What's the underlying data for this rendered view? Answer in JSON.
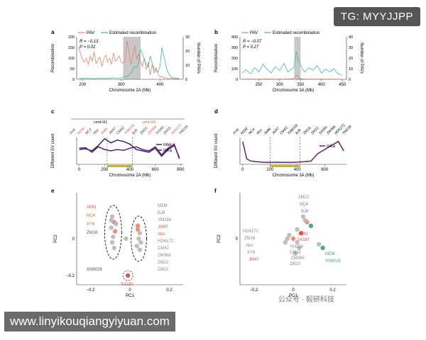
{
  "watermark_tg": "TG: MYYJJPP",
  "watermark_url": "www.linyikouqiangyiyuan.com",
  "watermark_wechat": "公众号 · 毅研科技",
  "chart_data": [
    {
      "panel": "a",
      "type": "line",
      "legend": [
        "PAV",
        "Estimated recombination"
      ],
      "stats": [
        "R = −0.13",
        "P = 0.02"
      ],
      "xlabel": "Chromosome 2A (Mb)",
      "ylabel": "Recombination",
      "y2label": "Number of PAVs",
      "xticks": [
        "200",
        "300",
        "400"
      ],
      "yticks": [
        "0",
        "50",
        "100",
        "150",
        "200"
      ],
      "y2ticks": [
        "0",
        "10",
        "20",
        "30"
      ],
      "xlim": [
        185,
        460
      ],
      "ylim": [
        0,
        200
      ],
      "y2lim": [
        0,
        30
      ],
      "highlight": [
        305,
        350
      ],
      "series": [
        {
          "name": "PAV",
          "color": "#e8826d",
          "x": [
            190,
            195,
            200,
            205,
            210,
            215,
            220,
            225,
            230,
            235,
            240,
            245,
            250,
            255,
            260,
            265,
            270,
            275,
            280,
            285,
            290,
            295,
            300,
            305,
            310,
            315,
            320,
            325,
            330,
            335,
            340,
            345,
            350,
            355,
            360,
            365,
            370,
            375,
            380,
            385,
            390,
            395,
            400,
            405,
            410,
            415,
            420,
            425,
            430,
            435,
            440,
            445,
            450
          ],
          "values": [
            150,
            120,
            95,
            80,
            100,
            70,
            110,
            85,
            130,
            75,
            90,
            105,
            60,
            95,
            115,
            80,
            100,
            70,
            125,
            85,
            95,
            110,
            80,
            75,
            90,
            180,
            130,
            70,
            110,
            160,
            95,
            120,
            85,
            60,
            100,
            45,
            80,
            20,
            70,
            30,
            55,
            25,
            10,
            15,
            5,
            8,
            4,
            3,
            5,
            2,
            4,
            3,
            2
          ]
        },
        {
          "name": "Estimated recombination",
          "color": "#3fb8aa",
          "x": [
            190,
            200,
            210,
            220,
            230,
            240,
            250,
            260,
            270,
            280,
            290,
            300,
            305,
            310,
            315,
            320,
            325,
            330,
            335,
            340,
            345,
            350,
            355,
            360,
            365,
            370,
            375,
            380,
            385,
            390,
            395,
            400,
            405,
            410,
            415,
            420,
            425,
            430,
            440,
            450
          ],
          "values": [
            5,
            4,
            6,
            5,
            3,
            6,
            5,
            4,
            6,
            7,
            5,
            8,
            10,
            14,
            12,
            20,
            30,
            45,
            60,
            55,
            80,
            140,
            120,
            90,
            70,
            60,
            110,
            75,
            50,
            40,
            35,
            60,
            150,
            110,
            70,
            35,
            20,
            10,
            6,
            5
          ]
        }
      ]
    },
    {
      "panel": "b",
      "type": "line",
      "legend": [
        "PAV",
        "Estimated recombination"
      ],
      "stats": [
        "R = −0.07",
        "P = 0.27"
      ],
      "xlabel": "Chromosome 3A (Mb)",
      "ylabel": "Recombination",
      "y2label": "Number of PAVs",
      "xticks": [
        "250",
        "300",
        "350",
        "400",
        "450"
      ],
      "yticks": [
        "0",
        "100",
        "200",
        "300",
        "400"
      ],
      "y2ticks": [
        "0",
        "10",
        "20",
        "30",
        "40"
      ],
      "xlim": [
        205,
        460
      ],
      "ylim": [
        0,
        400
      ],
      "y2lim": [
        0,
        45
      ],
      "highlight": [
        335,
        350
      ],
      "series": [
        {
          "name": "Estimated recombination",
          "color": "#3fb8aa",
          "x": [
            210,
            220,
            230,
            240,
            250,
            260,
            270,
            280,
            290,
            300,
            310,
            320,
            330,
            335,
            340,
            345,
            350,
            355,
            360,
            370,
            380,
            390,
            400,
            410,
            420,
            430,
            440,
            450
          ],
          "values": [
            60,
            90,
            50,
            110,
            70,
            140,
            95,
            60,
            120,
            80,
            150,
            70,
            100,
            120,
            260,
            180,
            140,
            90,
            70,
            110,
            85,
            130,
            60,
            95,
            70,
            100,
            50,
            40
          ]
        },
        {
          "name": "PAV",
          "color": "#e8826d",
          "x": [
            210,
            230,
            250,
            270,
            290,
            310,
            330,
            335,
            340,
            345,
            350,
            360,
            380,
            400,
            420,
            440,
            450
          ],
          "values": [
            2,
            3,
            2,
            4,
            2,
            3,
            5,
            15,
            40,
            20,
            6,
            3,
            2,
            3,
            2,
            2,
            1
          ]
        }
      ]
    },
    {
      "panel": "c",
      "type": "line",
      "labels": [
        "cent-H1",
        "cent-H2"
      ],
      "accessions": [
        "XY6",
        "MZM",
        "NC4",
        "Abo",
        "AMN",
        "JM47",
        "CM42",
        "XN6028",
        "BJ8",
        "ZM22",
        "ZM366",
        "S4180",
        "ZM16",
        "HD6172",
        "YM158"
      ],
      "legend": [
        "Inter",
        "Intra"
      ],
      "xlabel": "Chromosome 2A (Mb)",
      "ylabel": "Different SV count",
      "xticks": [
        "0",
        "200",
        "400",
        "600",
        "800"
      ],
      "xlim": [
        -20,
        820
      ],
      "series": [
        {
          "name": "Inter",
          "color": "#2a2a7a",
          "x": [
            0,
            50,
            100,
            150,
            200,
            250,
            300,
            350,
            400,
            450,
            500,
            550,
            600,
            650,
            700,
            750,
            790
          ],
          "values": [
            0.55,
            0.58,
            0.5,
            0.7,
            0.95,
            0.8,
            0.9,
            0.85,
            0.75,
            0.55,
            0.5,
            0.45,
            0.6,
            0.3,
            0.55,
            0.7,
            0.25
          ]
        },
        {
          "name": "Intra",
          "color": "#6a1e6e",
          "x": [
            0,
            50,
            100,
            150,
            200,
            250,
            300,
            350,
            400,
            450,
            500,
            550,
            600,
            650,
            700,
            750,
            790
          ],
          "values": [
            0.6,
            0.62,
            0.45,
            0.65,
            0.55,
            0.5,
            0.55,
            0.52,
            0.6,
            0.65,
            0.55,
            0.5,
            0.65,
            0.35,
            0.6,
            0.75,
            0.2
          ]
        }
      ]
    },
    {
      "panel": "d",
      "type": "line",
      "accessions": [
        "XY6",
        "MZM",
        "NC4",
        "Abo",
        "AMN",
        "JM47",
        "CM42",
        "XN6028",
        "BJ8",
        "ZM16",
        "ZM22",
        "S4180",
        "ZM366",
        "HD6172",
        "YM158"
      ],
      "legend": [
        "Intra"
      ],
      "xlabel": "Chromosome 3A (Mb)",
      "ylabel": "Different SV count",
      "xticks": [
        "0",
        "200",
        "400",
        "600"
      ],
      "xlim": [
        -20,
        760
      ],
      "series": [
        {
          "name": "Intra",
          "color": "#6a1e6e",
          "x": [
            0,
            30,
            60,
            100,
            150,
            200,
            250,
            300,
            350,
            400,
            450,
            500,
            550,
            600,
            650,
            700,
            740
          ],
          "values": [
            0.85,
            0.2,
            0.12,
            0.1,
            0.08,
            0.07,
            0.08,
            0.07,
            0.07,
            0.08,
            0.1,
            0.12,
            0.4,
            0.55,
            0.7,
            0.85,
            0.5
          ]
        }
      ]
    },
    {
      "panel": "e",
      "type": "scatter",
      "xlabel": "PC1",
      "ylabel": "PC2",
      "xticks": [
        "−0.2",
        "0",
        "0.2"
      ],
      "yticks": [
        "−0.2",
        "0"
      ],
      "xlim": [
        -0.27,
        0.27
      ],
      "ylim": [
        -0.25,
        0.25
      ],
      "labels_left": [
        "AMN",
        "NC4",
        "XY6",
        "ZM16",
        "XN6028"
      ],
      "labels_right": [
        "MZM",
        "BJ8",
        "YM158",
        "JM47",
        "Abo",
        "HD6172",
        "CM42",
        "ZM366",
        "ZM22",
        "ZM22"
      ],
      "outlier_label": "S4180",
      "points": [
        {
          "x": -0.09,
          "y": 0.12,
          "c": "gray"
        },
        {
          "x": -0.08,
          "y": 0.09,
          "c": "orange"
        },
        {
          "x": -0.095,
          "y": 0.06,
          "c": "gray"
        },
        {
          "x": -0.075,
          "y": 0.04,
          "c": "orange"
        },
        {
          "x": -0.085,
          "y": 0.01,
          "c": "gray"
        },
        {
          "x": -0.09,
          "y": -0.02,
          "c": "gray"
        },
        {
          "x": -0.08,
          "y": -0.05,
          "c": "gray"
        },
        {
          "x": -0.095,
          "y": 0.1,
          "c": "gray"
        },
        {
          "x": -0.07,
          "y": 0.08,
          "c": "gray"
        },
        {
          "x": 0.04,
          "y": 0.05,
          "c": "orange"
        },
        {
          "x": 0.05,
          "y": 0.03,
          "c": "gray"
        },
        {
          "x": 0.045,
          "y": 0.0,
          "c": "gray"
        },
        {
          "x": 0.055,
          "y": -0.02,
          "c": "gray"
        },
        {
          "x": 0.035,
          "y": -0.04,
          "c": "gray"
        },
        {
          "x": 0.05,
          "y": -0.06,
          "c": "gray"
        },
        {
          "x": 0.04,
          "y": 0.07,
          "c": "orange"
        },
        {
          "x": -0.01,
          "y": -0.2,
          "c": "red"
        },
        {
          "x": -0.02,
          "y": 0.0,
          "c": "gray"
        }
      ]
    },
    {
      "panel": "f",
      "type": "scatter",
      "xlabel": "PC1",
      "ylabel": "PC2",
      "xticks": [
        "−0.2",
        "0",
        "0.2"
      ],
      "yticks": [
        "0"
      ],
      "xlim": [
        -0.27,
        0.27
      ],
      "ylim": [
        -0.25,
        0.25
      ],
      "labels": [
        "ZM22",
        "NC4",
        "BJ8",
        "HD6172",
        "ZM16",
        "Abo",
        "XY6",
        "JM47",
        "AMN",
        "S4180",
        "YM158",
        "CM42",
        "ZM366",
        "ZM22",
        "MZM",
        "XN6028"
      ],
      "points": [
        {
          "x": 0.05,
          "y": 0.12,
          "c": "gray"
        },
        {
          "x": 0.07,
          "y": 0.09,
          "c": "orange"
        },
        {
          "x": 0.09,
          "y": 0.07,
          "c": "green"
        },
        {
          "x": -0.02,
          "y": 0.02,
          "c": "gray"
        },
        {
          "x": 0.0,
          "y": 0.0,
          "c": "orange"
        },
        {
          "x": 0.02,
          "y": -0.02,
          "c": "gray"
        },
        {
          "x": 0.04,
          "y": 0.03,
          "c": "red"
        },
        {
          "x": 0.03,
          "y": -0.05,
          "c": "gray"
        },
        {
          "x": 0.01,
          "y": -0.08,
          "c": "gray"
        },
        {
          "x": 0.15,
          "y": -0.05,
          "c": "green"
        },
        {
          "x": 0.13,
          "y": -0.03,
          "c": "gray"
        },
        {
          "x": -0.04,
          "y": -0.02,
          "c": "gray"
        },
        {
          "x": 0.06,
          "y": 0.1,
          "c": "gray"
        },
        {
          "x": 0.02,
          "y": 0.05,
          "c": "gray"
        },
        {
          "x": -0.03,
          "y": 0.0,
          "c": "gray"
        }
      ]
    }
  ]
}
